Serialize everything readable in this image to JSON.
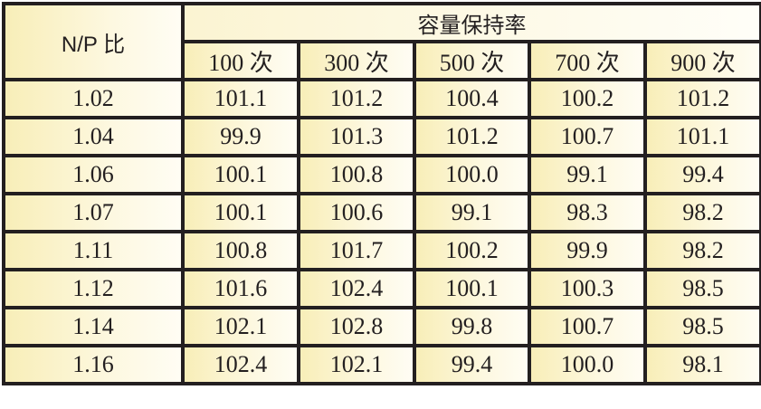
{
  "table": {
    "header": {
      "corner": "N/P 比",
      "group": "容量保持率",
      "columns": [
        "100 次",
        "300 次",
        "500 次",
        "700 次",
        "900 次"
      ]
    },
    "rows": [
      [
        "1.02",
        "101.1",
        "101.2",
        "100.4",
        "100.2",
        "101.2"
      ],
      [
        "1.04",
        "99.9",
        "101.3",
        "101.2",
        "100.7",
        "101.1"
      ],
      [
        "1.06",
        "100.1",
        "100.8",
        "100.0",
        "99.1",
        "99.4"
      ],
      [
        "1.07",
        "100.1",
        "100.6",
        "99.1",
        "98.3",
        "98.2"
      ],
      [
        "1.11",
        "100.8",
        "101.7",
        "100.2",
        "99.9",
        "98.2"
      ],
      [
        "1.12",
        "101.6",
        "102.4",
        "100.1",
        "100.3",
        "98.5"
      ],
      [
        "1.14",
        "102.1",
        "102.8",
        "99.8",
        "100.7",
        "98.5"
      ],
      [
        "1.16",
        "102.4",
        "102.1",
        "99.4",
        "100.0",
        "98.1"
      ]
    ]
  }
}
